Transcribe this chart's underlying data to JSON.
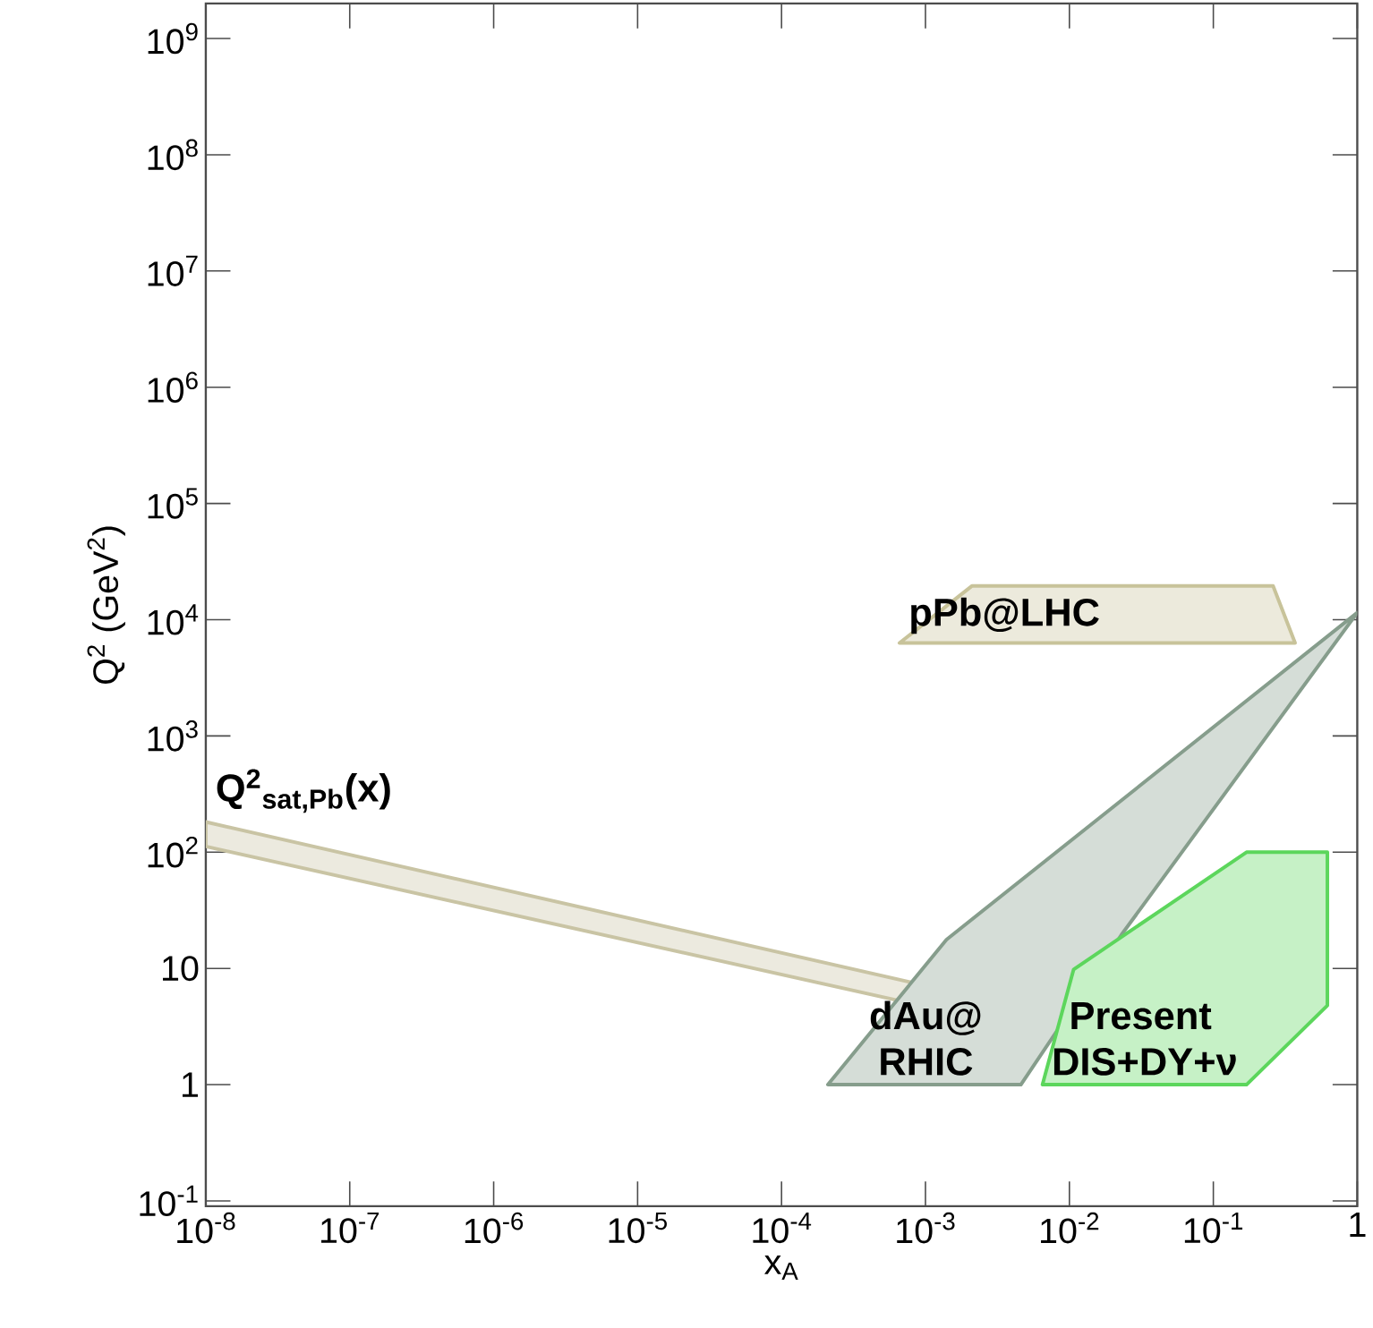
{
  "chart_data": {
    "type": "area",
    "xlabel": "x$_{A}$",
    "ylabel": "Q$^{2}$ (GeV$^{2}$)",
    "log": "xy",
    "xlim": [
      1e-08,
      1
    ],
    "ylim": [
      0.09,
      2000000000.0
    ],
    "xticks": [
      {
        "value": 1e-08,
        "label": "10$^{-8}$"
      },
      {
        "value": 1e-07,
        "label": "10$^{-7}$"
      },
      {
        "value": 1e-06,
        "label": "10$^{-6}$"
      },
      {
        "value": 1e-05,
        "label": "10$^{-5}$"
      },
      {
        "value": 0.0001,
        "label": "10$^{-4}$"
      },
      {
        "value": 0.001,
        "label": "10$^{-3}$"
      },
      {
        "value": 0.01,
        "label": "10$^{-2}$"
      },
      {
        "value": 0.1,
        "label": "10$^{-1}$"
      },
      1
    ],
    "yticks": [
      {
        "value": 0.1,
        "label": "10$^{-1}$"
      },
      1,
      10,
      {
        "value": 100,
        "label": "10$^{2}$"
      },
      {
        "value": 1000,
        "label": "10$^{3}$"
      },
      {
        "value": 10000,
        "label": "10$^{4}$"
      },
      {
        "value": 100000,
        "label": "10$^{5}$"
      },
      {
        "value": 1000000,
        "label": "10$^{6}$"
      },
      {
        "value": 10000000,
        "label": "10$^{7}$"
      },
      {
        "value": 100000000,
        "label": "10$^{8}$"
      },
      {
        "value": 1000000000,
        "label": "10$^{9}$"
      }
    ],
    "series": [
      {
        "name": "Q$^{2}$$_{sat,Pb}$(x)",
        "color": "#c9c4a4",
        "x": [
          1e-08,
          0.0085,
          0.0085,
          1e-08
        ],
        "values": [
          182,
          3.9,
          2.6,
          112
        ]
      },
      {
        "name": "dAu@ RHIC",
        "color": "#869d8c",
        "x": [
          0.00021,
          0.0046,
          0.023,
          1,
          0.0014
        ],
        "values": [
          1,
          1,
          19.5,
          11500,
          17.7
        ]
      },
      {
        "name": "Present DIS+DY+ν",
        "color": "#5cd65c",
        "x": [
          0.0065,
          0.17,
          0.62,
          0.62,
          0.17,
          0.0107
        ],
        "values": [
          1,
          1,
          4.8,
          100,
          100,
          9.8
        ]
      },
      {
        "name": "pPb@LHC",
        "color": "#c8c39a",
        "x": [
          0.00066,
          0.37,
          0.26,
          0.0021
        ],
        "values": [
          6300,
          6300,
          19500,
          19500
        ]
      }
    ]
  }
}
